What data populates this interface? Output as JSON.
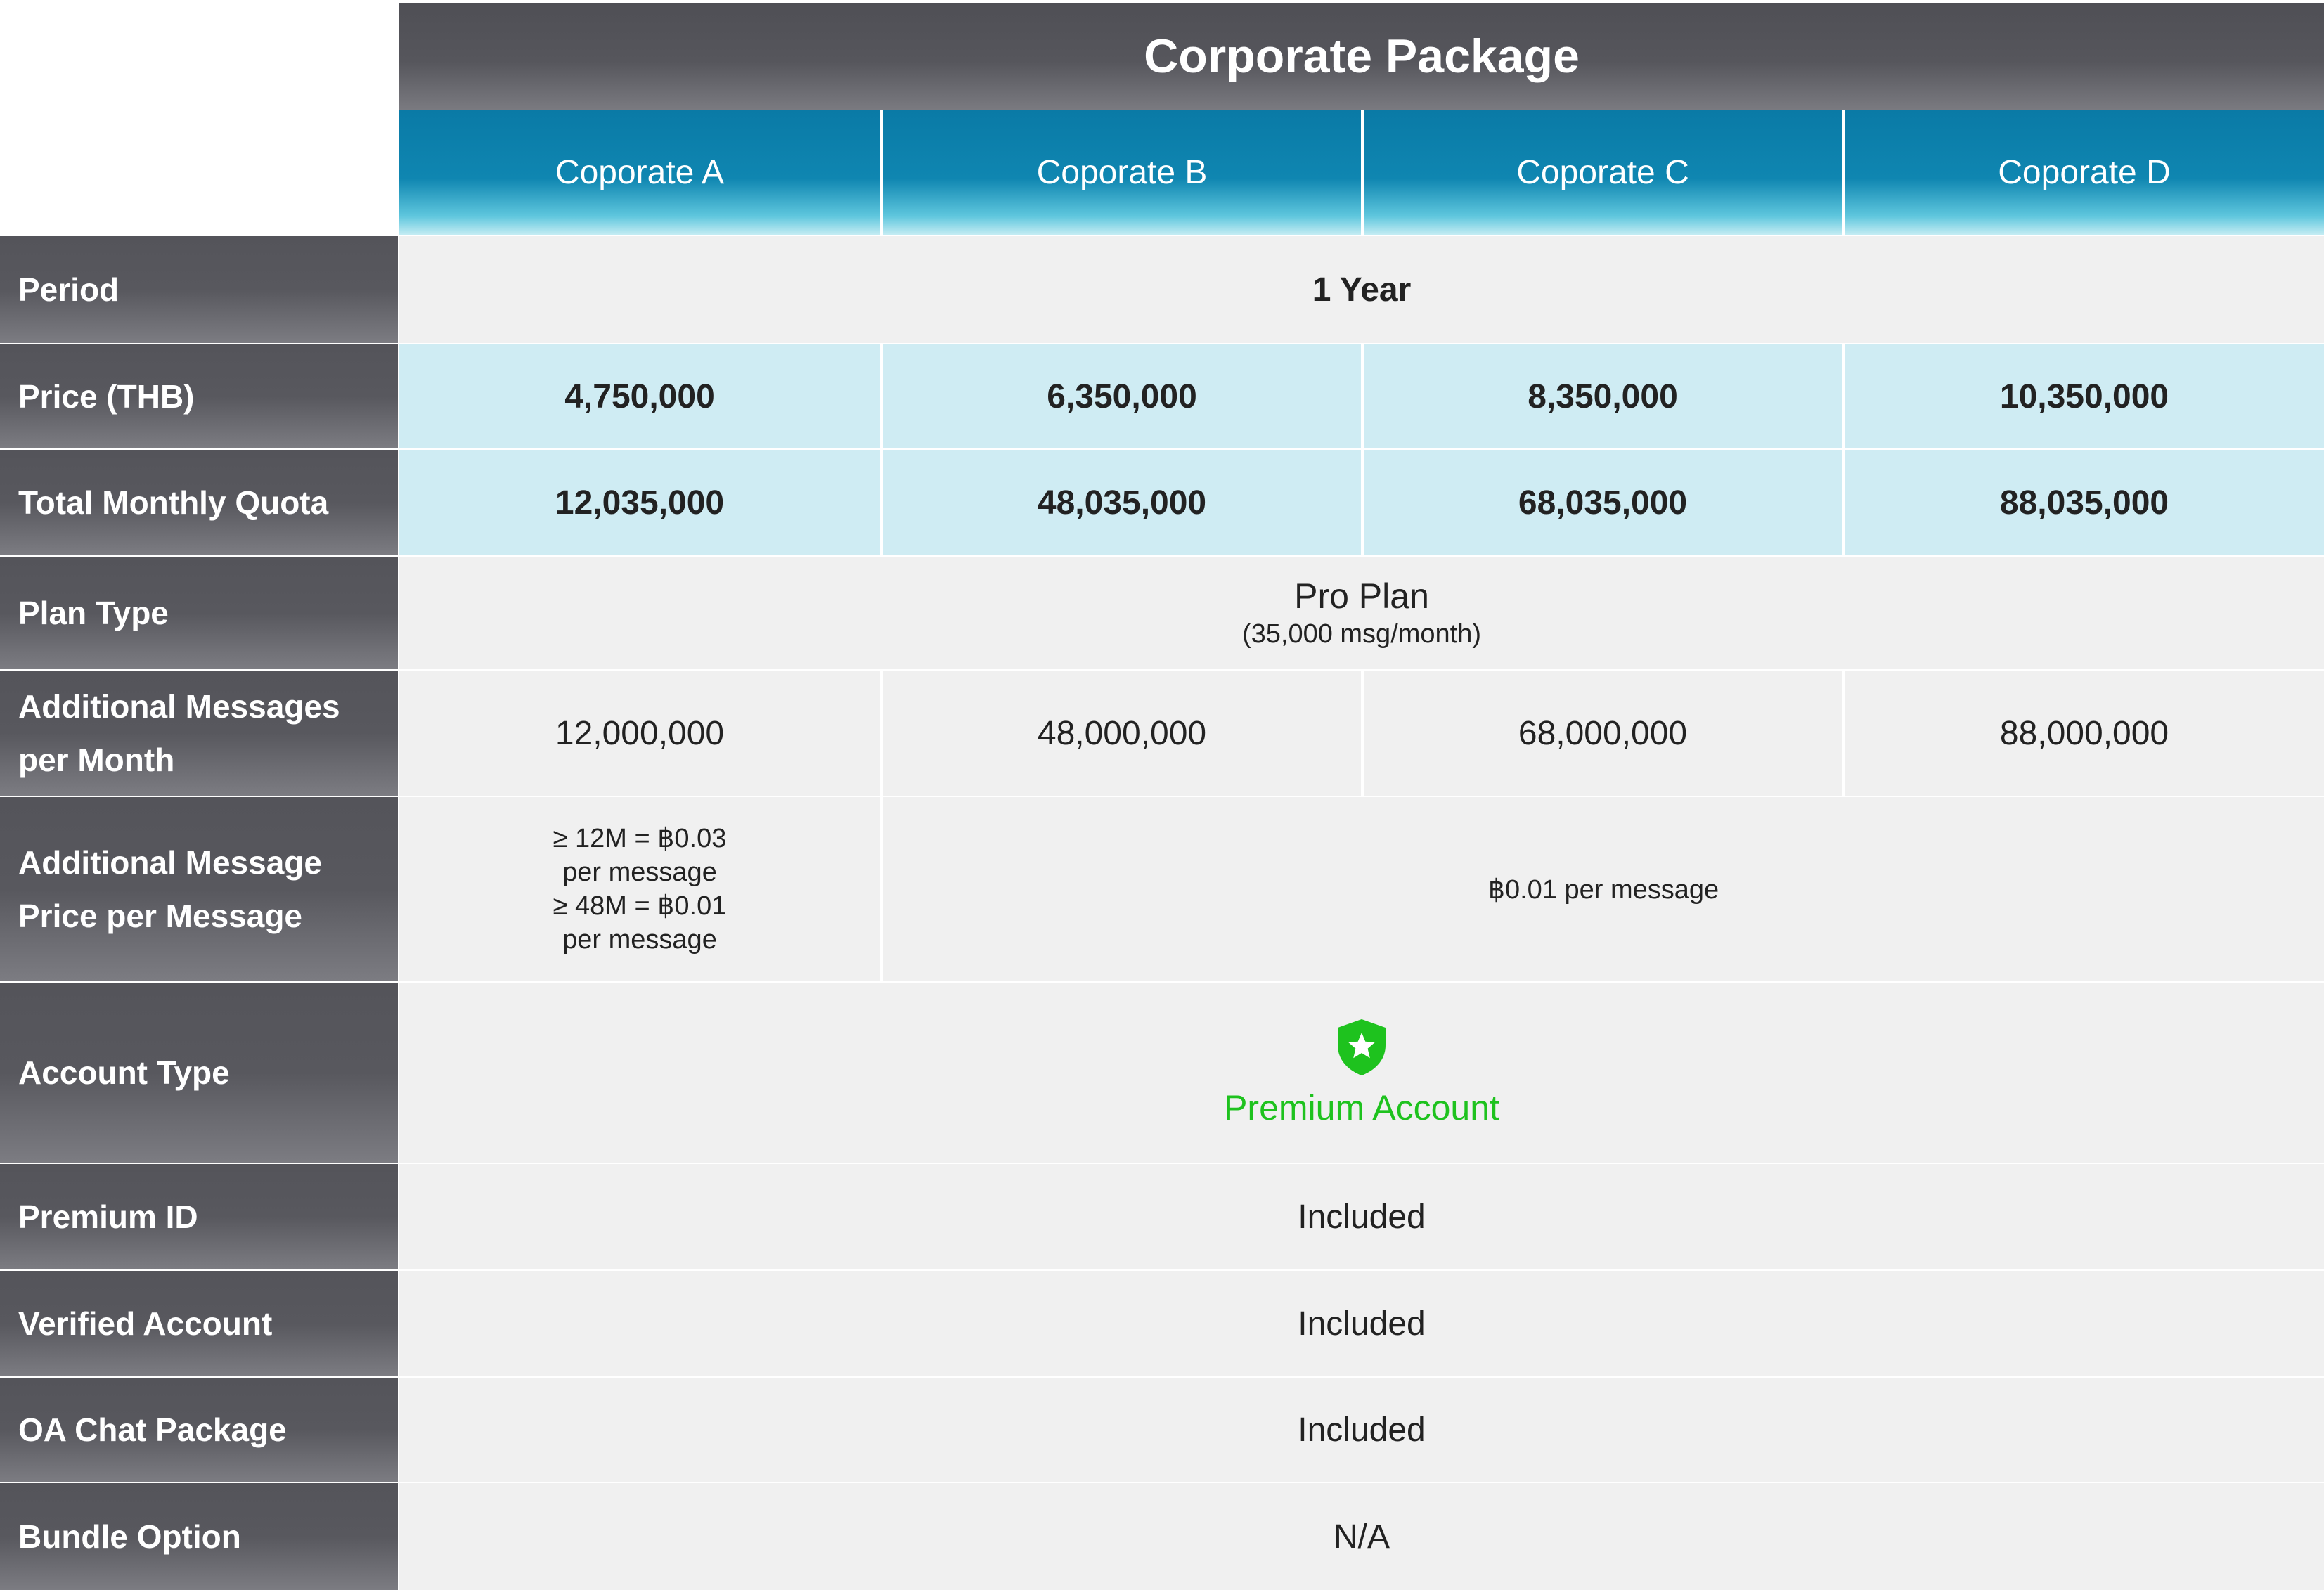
{
  "table": {
    "title": "Corporate Package",
    "columns": [
      "Coporate A",
      "Coporate B",
      "Coporate C",
      "Coporate D"
    ],
    "rows": {
      "period": {
        "label": "Period",
        "value": "1 Year"
      },
      "price": {
        "label": "Price (THB)",
        "values": [
          "4,750,000",
          "6,350,000",
          "8,350,000",
          "10,350,000"
        ]
      },
      "quota": {
        "label": "Total Monthly Quota",
        "values": [
          "12,035,000",
          "48,035,000",
          "68,035,000",
          "88,035,000"
        ]
      },
      "plan": {
        "label": "Plan Type",
        "value": "Pro Plan",
        "note": "(35,000 msg/month)"
      },
      "additional": {
        "label_line1": "Additional Messages",
        "label_line2": "per Month",
        "values": [
          "12,000,000",
          "48,000,000",
          "68,000,000",
          "88,000,000"
        ]
      },
      "addprice": {
        "label_line1": "Additional Message",
        "label_line2": "Price per Message",
        "col_a_lines": [
          "≥ 12M = ฿0.03",
          "per message",
          "≥ 48M = ฿0.01",
          "per message"
        ],
        "others": "฿0.01 per message"
      },
      "account": {
        "label": "Account Type",
        "value": "Premium Account",
        "icon": "shield-star-icon",
        "color": "#1ec21e"
      },
      "premium_id": {
        "label": "Premium ID",
        "value": "Included"
      },
      "verified": {
        "label": "Verified Account",
        "value": "Included"
      },
      "oa_chat": {
        "label": "OA Chat Package",
        "value": "Included"
      },
      "bundle": {
        "label": "Bundle Option",
        "value": "N/A"
      }
    }
  }
}
